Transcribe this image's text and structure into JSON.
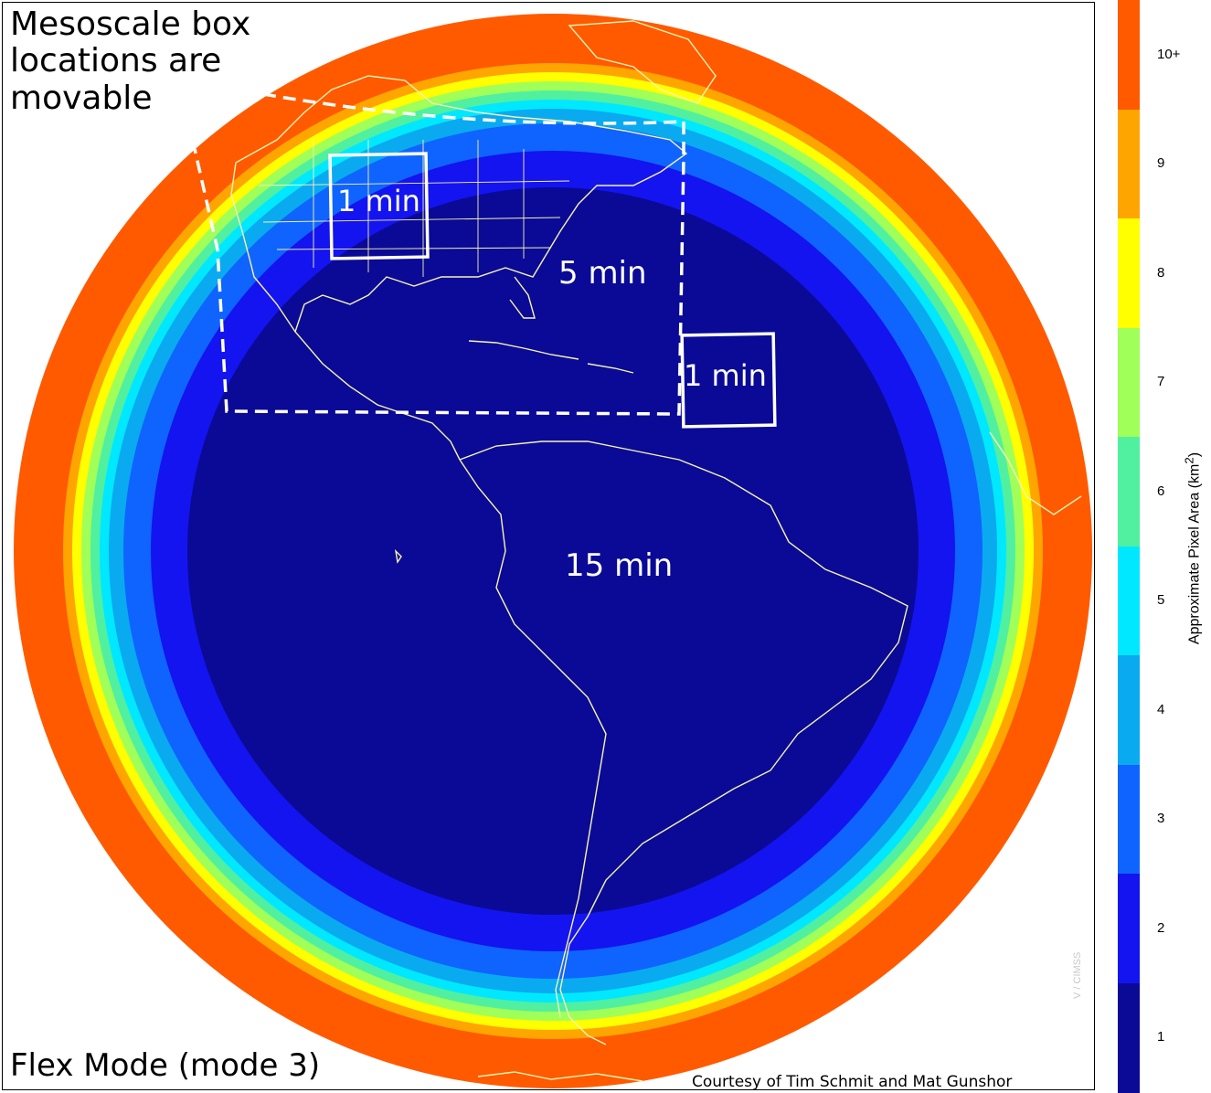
{
  "caption_top": [
    "Mesoscale box",
    "locations are",
    "movable"
  ],
  "caption_bottom": "Flex Mode (mode 3)",
  "credit": "Courtesy of Tim Schmit and Mat Gunshor",
  "watermark": "V / CIMSS",
  "region_labels": {
    "meso_1": "1 min",
    "meso_2": "1 min",
    "conus": "5 min",
    "full_disk": "15 min"
  },
  "colorbar": {
    "title": "Approximate Pixel Area (km",
    "title_sup": "2",
    "title_close": ")",
    "ticks": [
      "10+",
      "9",
      "8",
      "7",
      "6",
      "5",
      "4",
      "3",
      "2",
      "1"
    ],
    "colors": [
      "#ff5a00",
      "#ffa500",
      "#ffff00",
      "#a0ff58",
      "#50f0a0",
      "#00e8ff",
      "#0aaaf0",
      "#0f64ff",
      "#1414f0",
      "#0a0a96"
    ]
  },
  "legend": {
    "ring_colors": [
      "#ff5a00",
      "#ffa500",
      "#ffff00",
      "#a0ff58",
      "#50f0a0",
      "#00e8ff",
      "#0aaaf0",
      "#0f64ff",
      "#1414f0",
      "#0a0a96"
    ]
  }
}
